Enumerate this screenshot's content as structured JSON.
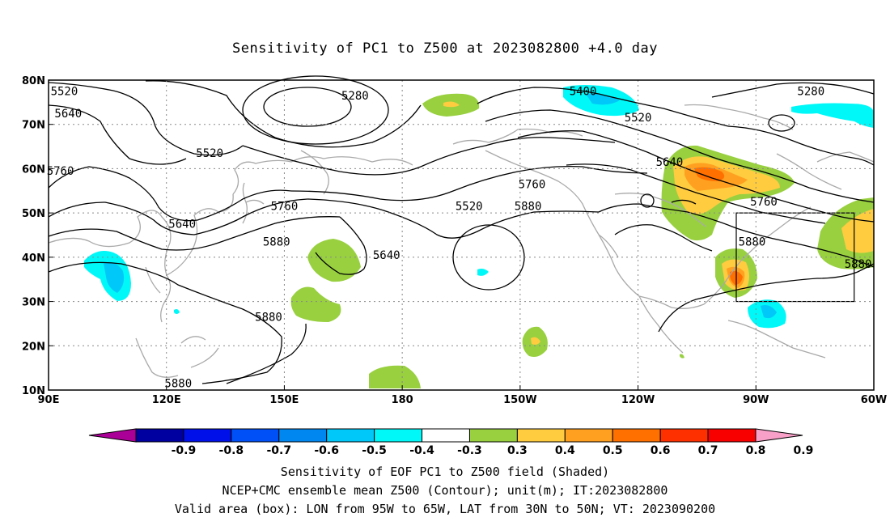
{
  "title": "Sensitivity of PC1 to Z500 at 2023082800 +4.0 day",
  "map": {
    "lon_range": [
      90,
      300
    ],
    "lat_range": [
      10,
      80
    ],
    "lat_ticks": [
      "80N",
      "70N",
      "60N",
      "50N",
      "40N",
      "30N",
      "20N",
      "10N"
    ],
    "lon_ticks": [
      "90E",
      "120E",
      "150E",
      "180",
      "150W",
      "120W",
      "90W",
      "60W"
    ],
    "grid": "dotted",
    "contour_labels": [
      {
        "text": "5520",
        "lon": 94,
        "lat": 77
      },
      {
        "text": "5640",
        "lon": 95,
        "lat": 72
      },
      {
        "text": "5760",
        "lon": 93,
        "lat": 59
      },
      {
        "text": "5280",
        "lon": 168,
        "lat": 76
      },
      {
        "text": "5520",
        "lon": 131,
        "lat": 63
      },
      {
        "text": "5640",
        "lon": 124,
        "lat": 47
      },
      {
        "text": "5760",
        "lon": 150,
        "lat": 51
      },
      {
        "text": "5880",
        "lon": 148,
        "lat": 43
      },
      {
        "text": "5640",
        "lon": 176,
        "lat": 40
      },
      {
        "text": "5880",
        "lon": 146,
        "lat": 26
      },
      {
        "text": "5880",
        "lon": 123,
        "lat": 11
      },
      {
        "text": "5520",
        "lon": 197,
        "lat": 51
      },
      {
        "text": "5760",
        "lon": 213,
        "lat": 56
      },
      {
        "text": "5880",
        "lon": 212,
        "lat": 51
      },
      {
        "text": "5400",
        "lon": 226,
        "lat": 77
      },
      {
        "text": "5520",
        "lon": 240,
        "lat": 71
      },
      {
        "text": "5640",
        "lon": 248,
        "lat": 61
      },
      {
        "text": "5760",
        "lon": 272,
        "lat": 52
      },
      {
        "text": "5880",
        "lon": 269,
        "lat": 43
      },
      {
        "text": "5280",
        "lon": 284,
        "lat": 77
      },
      {
        "text": "5880",
        "lon": 296,
        "lat": 38
      }
    ],
    "valid_box": {
      "lon_min": 265,
      "lon_max": 295,
      "lat_min": 30,
      "lat_max": 50
    }
  },
  "colorbar": {
    "labels": [
      "-0.9",
      "-0.8",
      "-0.7",
      "-0.6",
      "-0.5",
      "-0.4",
      "-0.3",
      "0.3",
      "0.4",
      "0.5",
      "0.6",
      "0.7",
      "0.8",
      "0.9"
    ],
    "colors": [
      "#ab0098",
      "#0000a0",
      "#0010e8",
      "#0050f8",
      "#0088f0",
      "#00c8f8",
      "#00f8f8",
      "#ffffff",
      "#98d040",
      "#ffcc40",
      "#ffa020",
      "#ff7000",
      "#ff3000",
      "#f80000",
      "#f8a0c8"
    ]
  },
  "footer": {
    "line1": "Sensitivity of EOF PC1 to Z500 field (Shaded)",
    "line2": "NCEP+CMC ensemble mean Z500 (Contour); unit(m); IT:2023082800",
    "line3": "Valid area (box): LON from 95W to 65W, LAT from 30N to 50N; VT: 2023090200"
  }
}
